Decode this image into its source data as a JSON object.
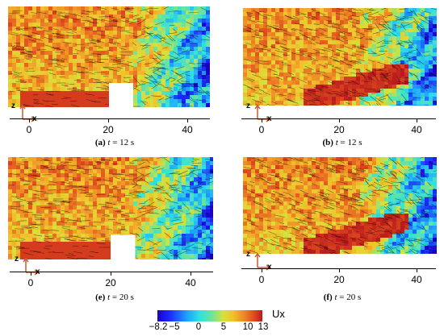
{
  "panels": [
    {
      "id": "a",
      "caption_letter": "(a)",
      "caption_var": "t",
      "caption_rest": " = 12 s",
      "has_block": true,
      "ticks": [
        {
          "label": "0"
        },
        {
          "label": "20"
        },
        {
          "label": "40"
        }
      ]
    },
    {
      "id": "b",
      "caption_letter": "(b)",
      "caption_var": "t",
      "caption_rest": " = 12 s",
      "has_block": false,
      "ticks": [
        {
          "label": "0"
        },
        {
          "label": "20"
        },
        {
          "label": "40"
        }
      ]
    },
    {
      "id": "e",
      "caption_letter": "(e)",
      "caption_var": "t",
      "caption_rest": " = 20 s",
      "has_block": true,
      "ticks": [
        {
          "label": "0"
        },
        {
          "label": "20"
        },
        {
          "label": "40"
        }
      ]
    },
    {
      "id": "f",
      "caption_letter": "(f)",
      "caption_var": "t",
      "caption_rest": " = 20 s",
      "has_block": false,
      "ticks": [
        {
          "label": "0"
        },
        {
          "label": "20"
        },
        {
          "label": "40"
        }
      ]
    }
  ],
  "axes_icon": {
    "z": "z",
    "x": "x"
  },
  "colorbar": {
    "title": "Ux",
    "ticks": [
      {
        "label": "−8.2",
        "value": -8.2
      },
      {
        "label": "−5",
        "value": -5
      },
      {
        "label": "0",
        "value": 0
      },
      {
        "label": "5",
        "value": 5
      },
      {
        "label": "10",
        "value": 10
      },
      {
        "label": "13",
        "value": 13
      }
    ],
    "min": -8.2,
    "max": 13
  }
}
